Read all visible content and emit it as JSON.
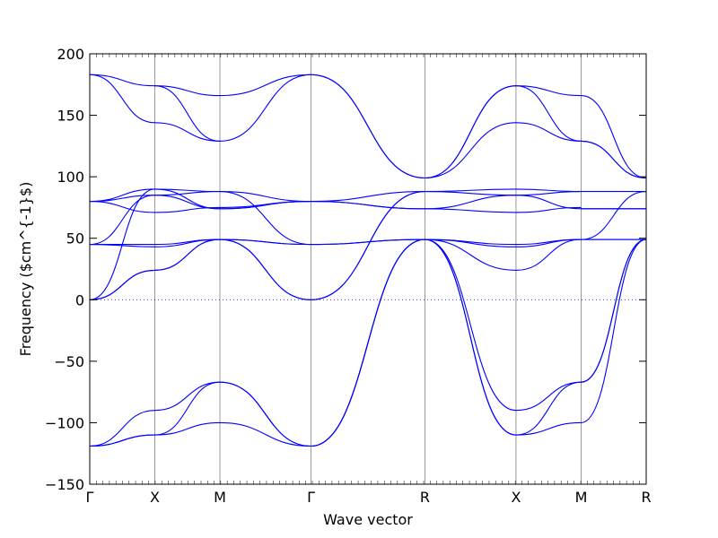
{
  "chart_data": {
    "type": "line",
    "title": "",
    "xlabel": "Wave vector",
    "ylabel": "Frequency ($cm^{-1}$)",
    "ylim": [
      -150,
      200
    ],
    "yticks": [
      "200",
      "150",
      "100",
      "50",
      "0",
      "−50",
      "−100",
      "−150"
    ],
    "ytick_values": [
      200,
      150,
      100,
      50,
      0,
      -50,
      -100,
      -150
    ],
    "xticks": [
      {
        "label": "Γ",
        "pos": 0
      },
      {
        "label": "X",
        "pos": 1
      },
      {
        "label": "M",
        "pos": 2
      },
      {
        "label": "Γ",
        "pos": 3.4
      },
      {
        "label": "R",
        "pos": 5.15
      },
      {
        "label": "X",
        "pos": 6.55
      },
      {
        "label": "M",
        "pos": 7.55
      },
      {
        "label": "R",
        "pos": 8.55
      }
    ],
    "xlim": [
      0,
      8.55
    ],
    "zero_line": true,
    "line_color": "#0000ff",
    "segments": [
      {
        "name": "Γ-X",
        "x0": 0,
        "x1": 1,
        "branches": [
          [
            183,
            174
          ],
          [
            183,
            144
          ],
          [
            80,
            85
          ],
          [
            80,
            90
          ],
          [
            80,
            71
          ],
          [
            45,
            45
          ],
          [
            45,
            43
          ],
          [
            45,
            85
          ],
          [
            0,
            24
          ],
          [
            0,
            24
          ],
          [
            0,
            90
          ],
          [
            -119,
            -90
          ],
          [
            -119,
            -110
          ],
          [
            -119,
            -110
          ]
        ]
      },
      {
        "name": "X-M",
        "x0": 1,
        "x1": 2,
        "branches": [
          [
            174,
            166
          ],
          [
            174,
            129
          ],
          [
            144,
            129
          ],
          [
            85,
            74
          ],
          [
            90,
            88
          ],
          [
            71,
            75
          ],
          [
            45,
            49
          ],
          [
            43,
            49
          ],
          [
            85,
            88
          ],
          [
            24,
            49
          ],
          [
            24,
            49
          ],
          [
            90,
            74
          ],
          [
            -90,
            -67
          ],
          [
            -110,
            -67
          ],
          [
            -110,
            -100
          ]
        ]
      },
      {
        "name": "M-Γ",
        "x0": 2,
        "x1": 3.4,
        "branches": [
          [
            166,
            183
          ],
          [
            129,
            183
          ],
          [
            88,
            80
          ],
          [
            74,
            80
          ],
          [
            75,
            80
          ],
          [
            49,
            45
          ],
          [
            49,
            45
          ],
          [
            88,
            45
          ],
          [
            49,
            0
          ],
          [
            49,
            0
          ],
          [
            74,
            80
          ],
          [
            -67,
            -119
          ],
          [
            -67,
            -119
          ],
          [
            -100,
            -119
          ]
        ]
      },
      {
        "name": "Γ-R",
        "x0": 3.4,
        "x1": 5.15,
        "branches": [
          [
            183,
            99
          ],
          [
            183,
            99
          ],
          [
            80,
            74
          ],
          [
            80,
            74
          ],
          [
            80,
            88
          ],
          [
            45,
            49
          ],
          [
            45,
            49
          ],
          [
            0,
            88
          ],
          [
            0,
            88
          ],
          [
            -119,
            49
          ],
          [
            -119,
            49
          ],
          [
            -119,
            49
          ]
        ]
      },
      {
        "name": "R-X",
        "x0": 5.15,
        "x1": 6.55,
        "branches": [
          [
            99,
            174
          ],
          [
            99,
            144
          ],
          [
            99,
            174
          ],
          [
            74,
            85
          ],
          [
            74,
            71
          ],
          [
            88,
            90
          ],
          [
            88,
            85
          ],
          [
            49,
            45
          ],
          [
            49,
            43
          ],
          [
            49,
            24
          ],
          [
            49,
            -90
          ],
          [
            49,
            -110
          ],
          [
            49,
            -110
          ]
        ]
      },
      {
        "name": "X-M",
        "x0": 6.55,
        "x1": 7.55,
        "branches": [
          [
            174,
            166
          ],
          [
            174,
            129
          ],
          [
            144,
            129
          ],
          [
            85,
            74
          ],
          [
            90,
            88
          ],
          [
            71,
            75
          ],
          [
            45,
            49
          ],
          [
            43,
            49
          ],
          [
            85,
            88
          ],
          [
            24,
            49
          ],
          [
            -90,
            -67
          ],
          [
            -110,
            -67
          ],
          [
            -110,
            -100
          ]
        ]
      },
      {
        "name": "M-R",
        "x0": 7.55,
        "x1": 8.55,
        "branches": [
          [
            166,
            99
          ],
          [
            129,
            99
          ],
          [
            129,
            99
          ],
          [
            88,
            88
          ],
          [
            74,
            74
          ],
          [
            74,
            74
          ],
          [
            49,
            49
          ],
          [
            49,
            49
          ],
          [
            49,
            88
          ],
          [
            -67,
            49
          ],
          [
            -67,
            49
          ],
          [
            -100,
            49
          ]
        ]
      }
    ]
  }
}
